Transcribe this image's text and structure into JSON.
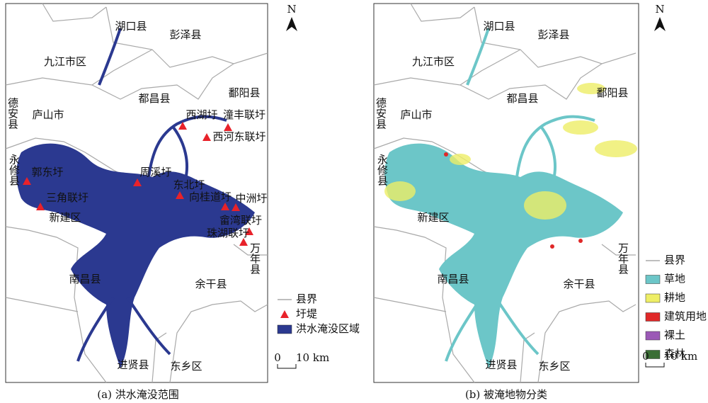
{
  "panels": [
    {
      "caption": "(a) 洪水淹没范围",
      "north": "N",
      "places": [
        "湖口县",
        "彭泽县",
        "九江市区",
        "都昌县",
        "鄱阳县",
        "庐山市",
        "德安县",
        "永修县",
        "新建区",
        "南昌县",
        "余干县",
        "万年县",
        "进贤县",
        "东乡区"
      ],
      "dykes": [
        "西湖圩",
        "潼丰联圩",
        "西河东联圩",
        "郭东圩",
        "周溪圩",
        "东北圩",
        "向桂道圩",
        "中洲圩",
        "三角联圩",
        "畲湾联圩",
        "珠湖联圩"
      ],
      "legend": [
        "县界",
        "圩堤",
        "洪水淹没区域"
      ],
      "scale": {
        "start": "0",
        "end": "10 km"
      }
    },
    {
      "caption": "(b) 被淹地物分类",
      "north": "N",
      "places": [
        "湖口县",
        "彭泽县",
        "九江市区",
        "都昌县",
        "鄱阳县",
        "庐山市",
        "德安县",
        "永修县",
        "新建区",
        "南昌县",
        "余干县",
        "万年县",
        "进贤县",
        "东乡区"
      ],
      "legend": [
        "县界",
        "草地",
        "耕地",
        "建筑用地",
        "裸土",
        "森林"
      ],
      "scale": {
        "start": "0",
        "end": "10 km"
      }
    }
  ]
}
